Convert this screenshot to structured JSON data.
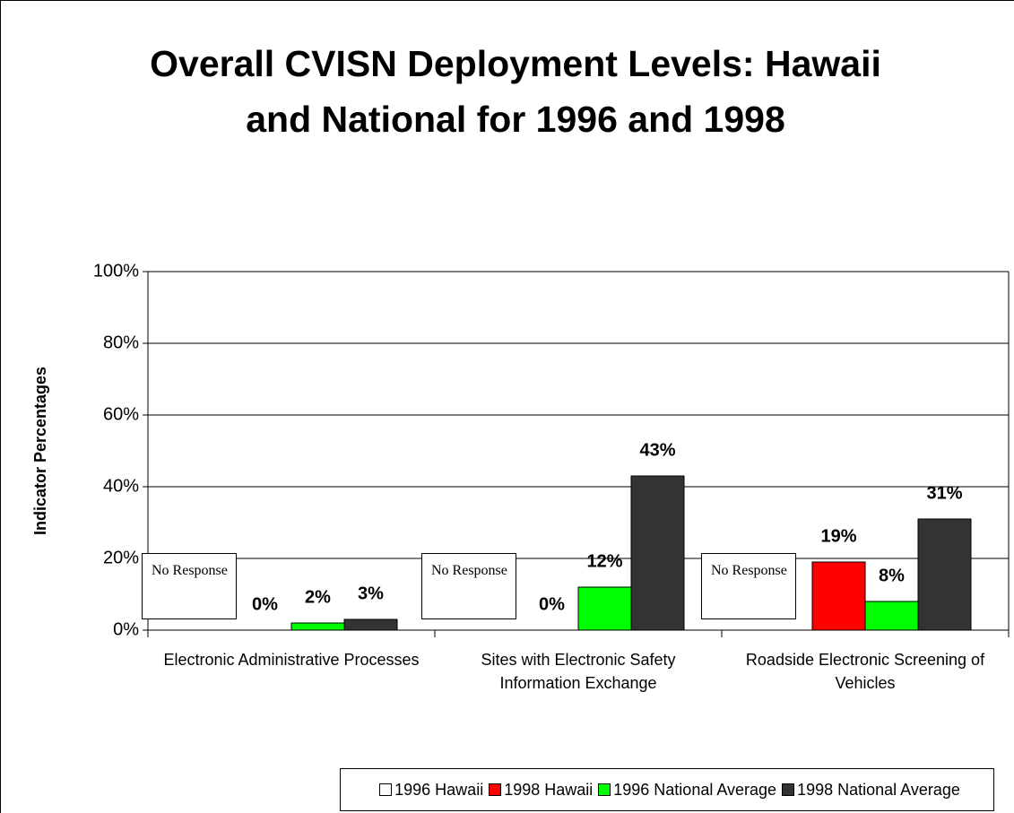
{
  "chart_data": {
    "type": "bar",
    "title": "Overall CVISN Deployment Levels: Hawaii and National for 1996 and 1998",
    "y_label": "Indicator Percentages",
    "categories": [
      "Electronic Administrative Processes",
      "Sites with Electronic Safety Information Exchange",
      "Roadside Electronic Screening of Vehicles"
    ],
    "series": [
      {
        "name": "1996 Hawaii",
        "color": "#ffffff",
        "values": [
          null,
          null,
          null
        ]
      },
      {
        "name": "1998 Hawaii",
        "color": "#ff0000",
        "values": [
          0,
          0,
          19
        ],
        "value_labels": [
          "0%",
          "0%",
          "19%"
        ]
      },
      {
        "name": "1996 National Average",
        "color": "#00ff00",
        "values": [
          2,
          12,
          8
        ],
        "value_labels": [
          "2%",
          "12%",
          "8%"
        ]
      },
      {
        "name": "1998 National Average",
        "color": "#333333",
        "values": [
          3,
          43,
          31
        ],
        "value_labels": [
          "3%",
          "43%",
          "31%"
        ]
      }
    ],
    "annotations": [
      "No Response",
      "No Response",
      "No Response"
    ],
    "ylim": [
      0,
      100
    ],
    "yticks": [
      {
        "value": 0,
        "label": "0%"
      },
      {
        "value": 20,
        "label": "20%"
      },
      {
        "value": 40,
        "label": "40%"
      },
      {
        "value": 60,
        "label": "60%"
      },
      {
        "value": 80,
        "label": "80%"
      },
      {
        "value": 100,
        "label": "100%"
      }
    ],
    "grid": true,
    "legend": "bottom"
  }
}
